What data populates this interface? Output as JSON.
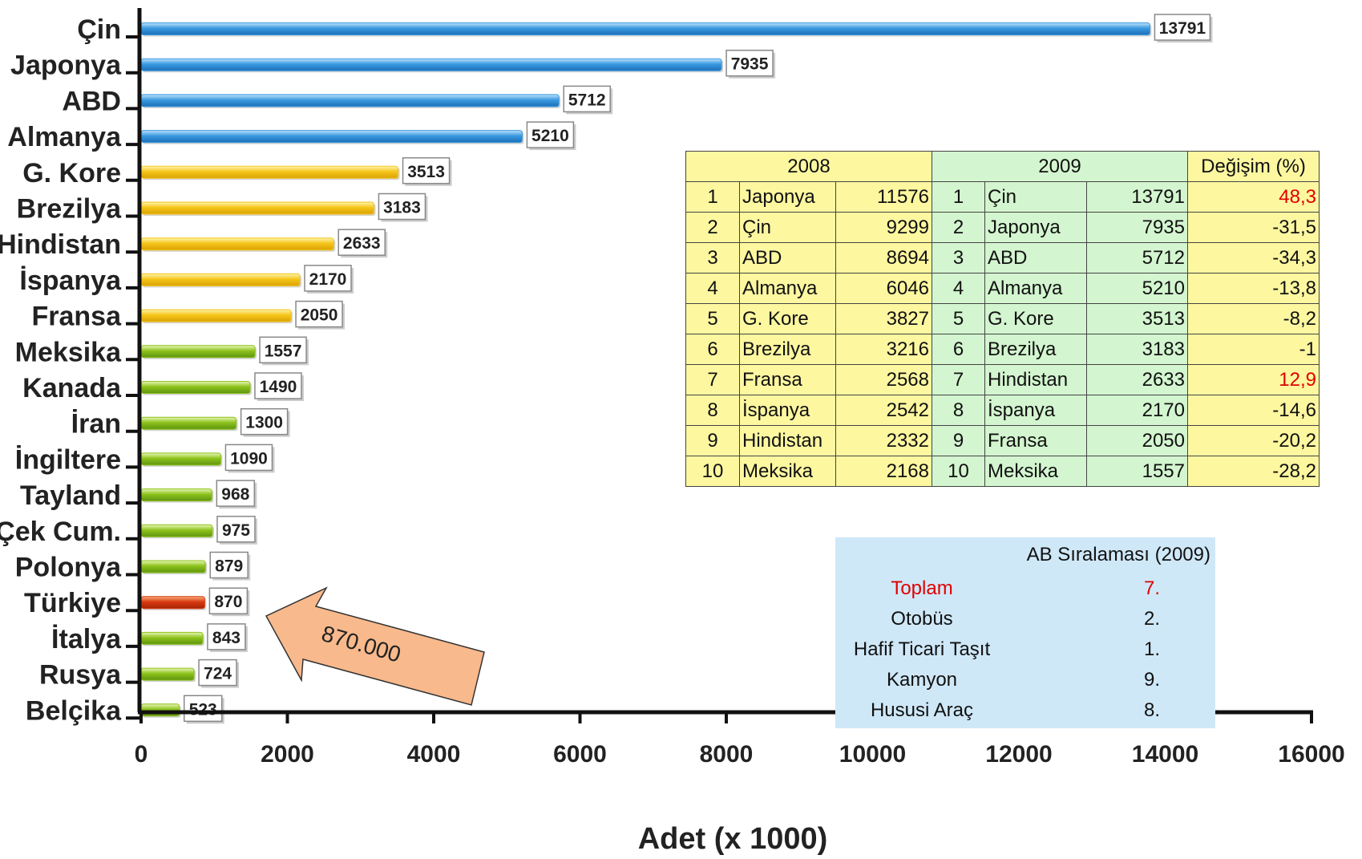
{
  "chart_data": {
    "type": "bar",
    "orientation": "horizontal",
    "categories": [
      "Çin",
      "Japonya",
      "ABD",
      "Almanya",
      "G. Kore",
      "Brezilya",
      "Hindistan",
      "İspanya",
      "Fransa",
      "Meksika",
      "Kanada",
      "İran",
      "İngiltere",
      "Tayland",
      "Çek Cum.",
      "Polonya",
      "Türkiye",
      "İtalya",
      "Rusya",
      "Belçika"
    ],
    "values": [
      13791,
      7935,
      5712,
      5210,
      3513,
      3183,
      2633,
      2170,
      2050,
      1557,
      1490,
      1300,
      1090,
      968,
      975,
      879,
      870,
      843,
      724,
      523
    ],
    "data_labels": [
      "13791",
      "7935",
      "5712",
      "5210",
      "3513",
      "3183",
      "2633",
      "2170",
      "2050",
      "1557",
      "1490",
      "1300",
      "1090",
      "968",
      "975",
      "879",
      "870",
      "843",
      "724",
      "523"
    ],
    "bar_groups": [
      "blue",
      "blue",
      "blue",
      "blue",
      "yellow",
      "yellow",
      "yellow",
      "yellow",
      "yellow",
      "green",
      "green",
      "green",
      "green",
      "green",
      "green",
      "green",
      "red",
      "green",
      "green",
      "green"
    ],
    "colors": {
      "blue": "#3a9ae0",
      "yellow": "#f5c518",
      "green": "#8cc21a",
      "red": "#d83a10"
    },
    "xlabel": "Adet (x 1000)",
    "xlim": [
      0,
      16000
    ],
    "xticks": [
      "0",
      "2000",
      "4000",
      "6000",
      "8000",
      "10000",
      "12000",
      "14000",
      "16000"
    ],
    "annotation": {
      "text": "870.000",
      "target": "Türkiye",
      "color": "#f8b98c"
    }
  },
  "ranking_table": {
    "headers": {
      "y2008": "2008",
      "y2009": "2009",
      "change": "Değişim (%)"
    },
    "rows": [
      {
        "r8": "1",
        "c8": "Japonya",
        "v8": "11576",
        "r9": "1",
        "c9": "Çin",
        "v9": "13791",
        "chg": "48,3"
      },
      {
        "r8": "2",
        "c8": "Çin",
        "v8": "9299",
        "r9": "2",
        "c9": "Japonya",
        "v9": "7935",
        "chg": "-31,5"
      },
      {
        "r8": "3",
        "c8": "ABD",
        "v8": "8694",
        "r9": "3",
        "c9": "ABD",
        "v9": "5712",
        "chg": "-34,3"
      },
      {
        "r8": "4",
        "c8": "Almanya",
        "v8": "6046",
        "r9": "4",
        "c9": "Almanya",
        "v9": "5210",
        "chg": "-13,8"
      },
      {
        "r8": "5",
        "c8": "G. Kore",
        "v8": "3827",
        "r9": "5",
        "c9": "G. Kore",
        "v9": "3513",
        "chg": "-8,2"
      },
      {
        "r8": "6",
        "c8": "Brezilya",
        "v8": "3216",
        "r9": "6",
        "c9": "Brezilya",
        "v9": "3183",
        "chg": "-1"
      },
      {
        "r8": "7",
        "c8": "Fransa",
        "v8": "2568",
        "r9": "7",
        "c9": "Hindistan",
        "v9": "2633",
        "chg": "12,9"
      },
      {
        "r8": "8",
        "c8": "İspanya",
        "v8": "2542",
        "r9": "8",
        "c9": "İspanya",
        "v9": "2170",
        "chg": "-14,6"
      },
      {
        "r8": "9",
        "c8": "Hindistan",
        "v8": "2332",
        "r9": "9",
        "c9": "Fransa",
        "v9": "2050",
        "chg": "-20,2"
      },
      {
        "r8": "10",
        "c8": "Meksika",
        "v8": "2168",
        "r9": "10",
        "c9": "Meksika",
        "v9": "1557",
        "chg": "-28,2"
      }
    ]
  },
  "ab_ranking": {
    "title": "AB Sıralaması (2009)",
    "rows": [
      {
        "name": "Toplam",
        "value": "7.",
        "highlight": true
      },
      {
        "name": "Otobüs",
        "value": "2.",
        "highlight": false
      },
      {
        "name": "Hafif Ticari Taşıt",
        "value": "1.",
        "highlight": false
      },
      {
        "name": "Kamyon",
        "value": "9.",
        "highlight": false
      },
      {
        "name": "Hususi Araç",
        "value": "8.",
        "highlight": false
      }
    ]
  }
}
